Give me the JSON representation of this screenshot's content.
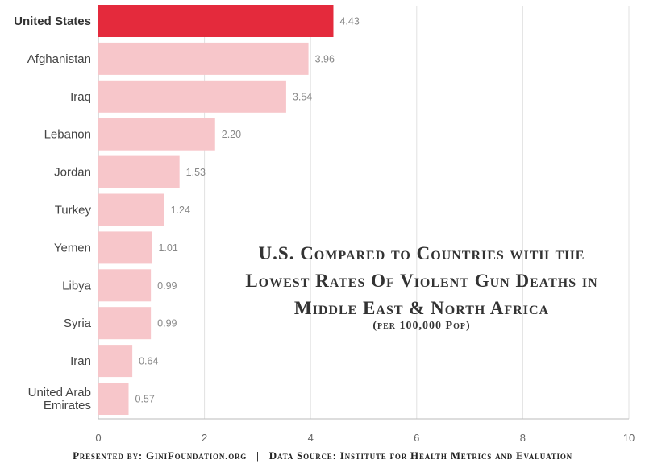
{
  "chart_data": {
    "type": "bar",
    "orientation": "horizontal",
    "categories": [
      "United States",
      "Afghanistan",
      "Iraq",
      "Lebanon",
      "Jordan",
      "Turkey",
      "Yemen",
      "Libya",
      "Syria",
      "Iran",
      "United Arab Emirates"
    ],
    "values": [
      4.43,
      3.96,
      3.54,
      2.2,
      1.53,
      1.24,
      1.01,
      0.99,
      0.99,
      0.64,
      0.57
    ],
    "value_labels": [
      "4.43",
      "3.96",
      "3.54",
      "2.20",
      "1.53",
      "1.24",
      "1.01",
      "0.99",
      "0.99",
      "0.64",
      "0.57"
    ],
    "highlight_category": "United States",
    "xlim": [
      0,
      10
    ],
    "xticks": [
      0,
      2,
      4,
      6,
      8,
      10
    ],
    "grid": "vertical",
    "title_lines": [
      "U.S. Compared to Countries with the",
      "Lowest Rates Of Violent Gun Deaths in",
      "Middle East & North Africa"
    ],
    "subtitle": "(per 100,000 Pop)",
    "colors": {
      "highlight": "#e42a3c",
      "bar": "#f7c6ca",
      "grid": "#e2e2e2",
      "axis": "#bbbbbb"
    }
  },
  "footer": {
    "presented": "Presented by: GiniFoundation.org",
    "separator": "|",
    "source": "Data Source: Institute for Health Metrics and Evaluation"
  }
}
